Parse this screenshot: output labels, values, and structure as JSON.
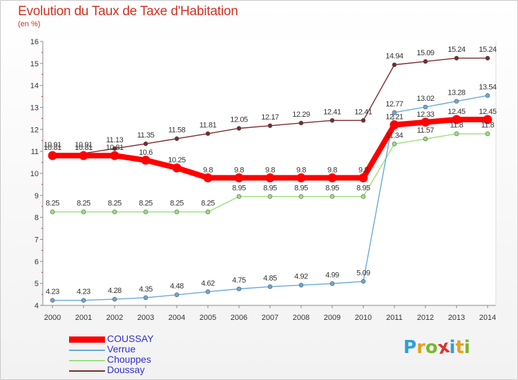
{
  "title": "Evolution du Taux de Taxe d'Habitation",
  "unit": "(en %)",
  "logo": {
    "text": "Proxiti",
    "colors": [
      "#2e9fd8",
      "#e8a020",
      "#7ab82a",
      "#e03030",
      "#2e9fd8",
      "#e8a020",
      "#7ab82a"
    ]
  },
  "chart_data": {
    "type": "line",
    "title": "Evolution du Taux de Taxe d'Habitation",
    "ylabel": "(en %)",
    "xlabel": "",
    "x": [
      "2000",
      "2001",
      "2002",
      "2003",
      "2004",
      "2005",
      "2006",
      "2007",
      "2008",
      "2009",
      "2010",
      "2011",
      "2012",
      "2013",
      "2014"
    ],
    "ylim": [
      4,
      16
    ],
    "yticks": [
      "4",
      "5",
      "6",
      "7",
      "8",
      "9",
      "10",
      "11",
      "12",
      "13",
      "14",
      "15",
      "16"
    ],
    "grid": false,
    "legend_position": "bottom-left",
    "series": [
      {
        "name": "COUSSAY",
        "color": "#ff0000",
        "values": [
          10.81,
          10.81,
          10.81,
          10.6,
          10.25,
          9.8,
          9.8,
          9.8,
          9.8,
          9.8,
          9.8,
          12.21,
          12.33,
          12.45,
          12.45
        ],
        "labels": [
          "10.81",
          "10.81",
          "10.81",
          "10.6",
          "10.25",
          "9.8",
          "9.8",
          "9.8",
          "9.8",
          "9.8",
          "9.8",
          "12.21",
          "12.33",
          "12.45",
          "12.45"
        ]
      },
      {
        "name": "Verrue",
        "color": "#6aa8d8",
        "values": [
          4.23,
          4.23,
          4.28,
          4.35,
          4.48,
          4.62,
          4.75,
          4.85,
          4.92,
          4.99,
          5.09,
          12.77,
          13.02,
          13.28,
          13.54
        ],
        "labels": [
          "4.23",
          "4.23",
          "4.28",
          "4.35",
          "4.48",
          "4.62",
          "4.75",
          "4.85",
          "4.92",
          "4.99",
          "5.09",
          "12.77",
          "13.02",
          "13.28",
          "13.54"
        ]
      },
      {
        "name": "Chouppes",
        "color": "#99e07a",
        "values": [
          8.25,
          8.25,
          8.25,
          8.25,
          8.25,
          8.25,
          8.95,
          8.95,
          8.95,
          8.95,
          8.95,
          11.34,
          11.57,
          11.8,
          11.8
        ],
        "labels": [
          "8.25",
          "8.25",
          "8.25",
          "8.25",
          "8.25",
          "8.25",
          "8.95",
          "8.95",
          "8.95",
          "8.95",
          "8.95",
          "11.34",
          "11.57",
          "11.8",
          "11.8"
        ]
      },
      {
        "name": "Doussay",
        "color": "#7a2a2a",
        "values": [
          10.91,
          10.91,
          11.13,
          11.35,
          11.58,
          11.81,
          12.05,
          12.17,
          12.29,
          12.41,
          12.41,
          14.94,
          15.09,
          15.24,
          15.24
        ],
        "labels": [
          "10.91",
          "10.91",
          "11.13",
          "11.35",
          "11.58",
          "11.81",
          "12.05",
          "12.17",
          "12.29",
          "12.41",
          "12.41",
          "14.94",
          "15.09",
          "15.24",
          "15.24"
        ]
      }
    ]
  }
}
